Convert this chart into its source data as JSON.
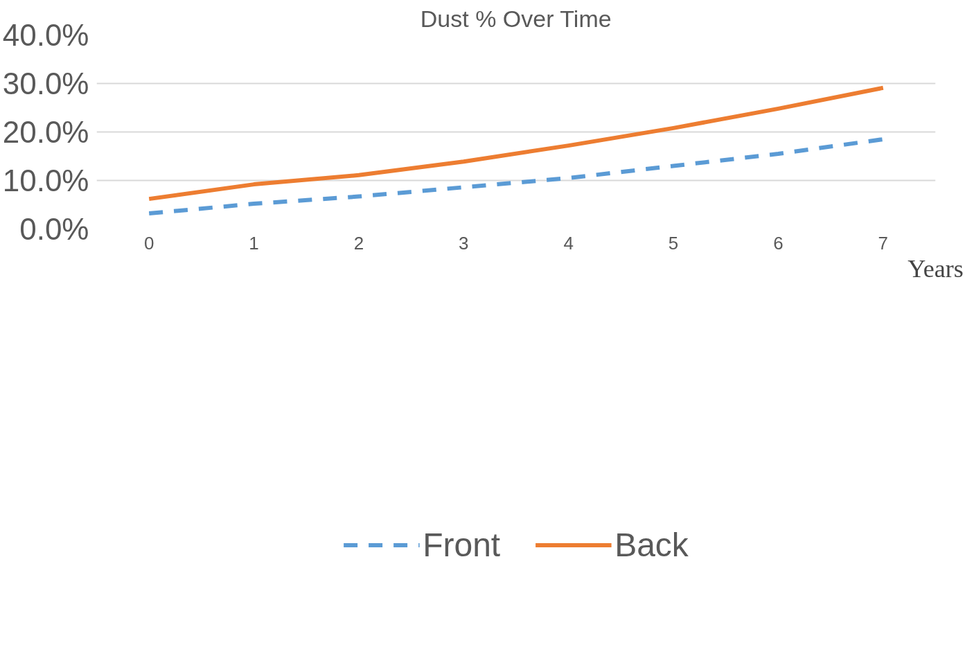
{
  "chart_data": {
    "type": "line",
    "title": "Dust % Over Time",
    "xlabel": "Years",
    "categories": [
      "0",
      "1",
      "2",
      "3",
      "4",
      "5",
      "6",
      "7"
    ],
    "series": [
      {
        "name": "Front",
        "color": "#5b9bd5",
        "line_style": "dashed",
        "values": [
          3.2,
          5.2,
          6.7,
          8.6,
          10.5,
          13.0,
          15.5,
          18.5
        ]
      },
      {
        "name": "Back",
        "color": "#ed7d31",
        "line_style": "solid",
        "values": [
          6.2,
          9.2,
          11.1,
          13.9,
          17.2,
          20.8,
          24.8,
          29.1
        ]
      }
    ],
    "ylim": [
      0,
      40
    ],
    "yticks": [
      {
        "value": 0,
        "label": "0.0%"
      },
      {
        "value": 10,
        "label": "10.0%"
      },
      {
        "value": 20,
        "label": "20.0%"
      },
      {
        "value": 30,
        "label": "30.0%"
      },
      {
        "value": 40,
        "label": "40.0%"
      }
    ],
    "grid": "y",
    "legend": "bottom",
    "marker": "none"
  }
}
